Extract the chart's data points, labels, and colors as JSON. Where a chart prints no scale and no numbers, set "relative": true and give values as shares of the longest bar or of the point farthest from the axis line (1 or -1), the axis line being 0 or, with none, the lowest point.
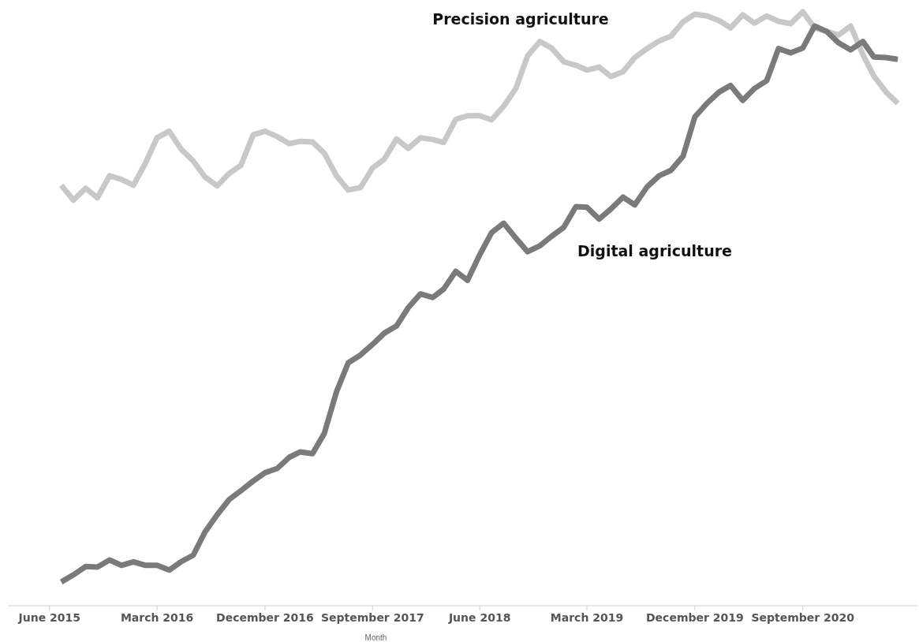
{
  "chart_data": {
    "type": "line",
    "relative": true,
    "xlabel": "Month",
    "x": [
      "2015-07",
      "2015-08",
      "2015-09",
      "2015-10",
      "2015-11",
      "2015-12",
      "2016-01",
      "2016-02",
      "2016-03",
      "2016-04",
      "2016-05",
      "2016-06",
      "2016-07",
      "2016-08",
      "2016-09",
      "2016-10",
      "2016-11",
      "2016-12",
      "2017-01",
      "2017-02",
      "2017-03",
      "2017-04",
      "2017-05",
      "2017-06",
      "2017-07",
      "2017-08",
      "2017-09",
      "2017-10",
      "2017-11",
      "2017-12",
      "2018-01",
      "2018-02",
      "2018-03",
      "2018-04",
      "2018-05",
      "2018-06",
      "2018-07",
      "2018-08",
      "2018-09",
      "2018-10",
      "2018-11",
      "2018-12",
      "2019-01",
      "2019-02",
      "2019-03",
      "2019-04",
      "2019-05",
      "2019-06",
      "2019-07",
      "2019-08",
      "2019-09",
      "2019-10",
      "2019-11",
      "2019-12",
      "2020-01",
      "2020-02",
      "2020-03",
      "2020-04",
      "2020-05",
      "2020-06",
      "2020-07",
      "2020-08",
      "2020-09",
      "2020-10",
      "2020-11",
      "2020-12",
      "2021-01",
      "2021-02",
      "2021-03",
      "2021-04",
      "2021-05"
    ],
    "xlim": [
      "2015-02-15",
      "2021-06-20"
    ],
    "xticks": [
      {
        "value": "2015-06",
        "label": "June 2015"
      },
      {
        "value": "2016-03",
        "label": "March 2016"
      },
      {
        "value": "2016-12",
        "label": "December 2016"
      },
      {
        "value": "2017-09",
        "label": "September 2017"
      },
      {
        "value": "2018-06",
        "label": "June 2018"
      },
      {
        "value": "2019-03",
        "label": "March 2019"
      },
      {
        "value": "2019-12",
        "label": "December 2019"
      },
      {
        "value": "2020-09",
        "label": "September 2020"
      }
    ],
    "series": [
      {
        "name": "Precision agriculture",
        "color": "#c8c8c8",
        "values": [
          0.708,
          0.683,
          0.703,
          0.687,
          0.724,
          0.718,
          0.708,
          0.746,
          0.788,
          0.799,
          0.769,
          0.749,
          0.722,
          0.707,
          0.728,
          0.742,
          0.793,
          0.799,
          0.79,
          0.778,
          0.782,
          0.781,
          0.762,
          0.724,
          0.7,
          0.704,
          0.737,
          0.752,
          0.786,
          0.77,
          0.788,
          0.785,
          0.78,
          0.819,
          0.825,
          0.825,
          0.818,
          0.841,
          0.871,
          0.926,
          0.95,
          0.939,
          0.916,
          0.91,
          0.902,
          0.907,
          0.891,
          0.899,
          0.923,
          0.938,
          0.951,
          0.959,
          0.983,
          0.996,
          0.993,
          0.985,
          0.973,
          0.995,
          0.981,
          0.993,
          0.984,
          0.98,
          1,
          0.973,
          0.967,
          0.961,
          0.976,
          0.928,
          0.892,
          0.865,
          0.846
        ]
      },
      {
        "name": "Digital agriculture",
        "color": "#7a7a7a",
        "values": [
          0.04,
          0.052,
          0.066,
          0.065,
          0.077,
          0.068,
          0.074,
          0.068,
          0.068,
          0.06,
          0.074,
          0.085,
          0.124,
          0.153,
          0.179,
          0.194,
          0.21,
          0.224,
          0.231,
          0.25,
          0.259,
          0.256,
          0.29,
          0.36,
          0.409,
          0.422,
          0.44,
          0.459,
          0.471,
          0.502,
          0.525,
          0.519,
          0.533,
          0.563,
          0.548,
          0.591,
          0.628,
          0.644,
          0.619,
          0.596,
          0.606,
          0.622,
          0.637,
          0.672,
          0.671,
          0.651,
          0.668,
          0.688,
          0.675,
          0.705,
          0.724,
          0.733,
          0.757,
          0.823,
          0.846,
          0.865,
          0.876,
          0.851,
          0.871,
          0.884,
          0.938,
          0.931,
          0.939,
          0.976,
          0.967,
          0.948,
          0.936,
          0.95,
          0.924,
          0.923,
          0.92
        ]
      }
    ]
  }
}
